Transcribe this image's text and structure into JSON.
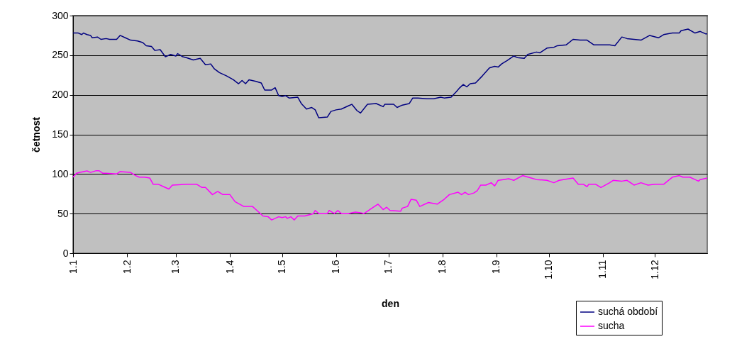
{
  "chart_data": {
    "type": "line",
    "xlabel": "den",
    "ylabel": "četnost",
    "ylim": [
      0,
      300
    ],
    "yticks": [
      0,
      50,
      100,
      150,
      200,
      250,
      300
    ],
    "xlim": [
      "--01-01",
      "--12-31"
    ],
    "xticks": [
      {
        "value": "--01-01",
        "label": "1.1"
      },
      {
        "value": "--02-01",
        "label": "1.2"
      },
      {
        "value": "--03-01",
        "label": "1.3"
      },
      {
        "value": "--04-01",
        "label": "1.4"
      },
      {
        "value": "--05-01",
        "label": "1.5"
      },
      {
        "value": "--06-01",
        "label": "1.6"
      },
      {
        "value": "--07-01",
        "label": "1.7"
      },
      {
        "value": "--08-01",
        "label": "1.8"
      },
      {
        "value": "--09-01",
        "label": "1.9"
      },
      {
        "value": "--10-01",
        "label": "1.10"
      },
      {
        "value": "--11-01",
        "label": "1.11"
      },
      {
        "value": "--12-01",
        "label": "1.12"
      }
    ],
    "grid": "y",
    "legend": "bottom right",
    "marker": "none",
    "line_style": "solid",
    "series": [
      {
        "name": "suchá období",
        "color": "#000080",
        "x": [
          "--01-01",
          "--01-04",
          "--01-06",
          "--01-07",
          "--01-09",
          "--01-11",
          "--01-12",
          "--01-15",
          "--01-17",
          "--01-20",
          "--01-22",
          "--01-26",
          "--01-28",
          "--01-31",
          "--02-03",
          "--02-07",
          "--02-10",
          "--02-12",
          "--02-15",
          "--02-17",
          "--02-20",
          "--02-23",
          "--02-26",
          "--03-01",
          "--03-02",
          "--03-05",
          "--03-07",
          "--03-11",
          "--03-15",
          "--03-18",
          "--03-21",
          "--03-23",
          "--03-26",
          "--03-30",
          "--04-03",
          "--04-06",
          "--04-08",
          "--04-10",
          "--04-12",
          "--04-16",
          "--04-19",
          "--04-21",
          "--04-25",
          "--04-27",
          "--04-29",
          "--05-01",
          "--05-03",
          "--05-05",
          "--05-10",
          "--05-12",
          "--05-15",
          "--05-18",
          "--05-20",
          "--05-22",
          "--05-27",
          "--05-29",
          "--06-01",
          "--06-04",
          "--06-08",
          "--06-10",
          "--06-13",
          "--06-15",
          "--06-19",
          "--06-24",
          "--06-28",
          "--06-29",
          "--07-04",
          "--07-06",
          "--07-09",
          "--07-13",
          "--07-15",
          "--07-18",
          "--07-23",
          "--07-27",
          "--07-31",
          "--08-02",
          "--08-06",
          "--08-09",
          "--08-11",
          "--08-13",
          "--08-15",
          "--08-17",
          "--08-20",
          "--08-24",
          "--08-28",
          "--08-31",
          "--09-02",
          "--09-04",
          "--09-07",
          "--09-11",
          "--09-13",
          "--09-17",
          "--09-19",
          "--09-24",
          "--09-26",
          "--09-30",
          "--10-04",
          "--10-06",
          "--10-11",
          "--10-15",
          "--10-19",
          "--10-23",
          "--10-27",
          "--11-01",
          "--11-05",
          "--11-08",
          "--11-12",
          "--11-15",
          "--11-19",
          "--11-23",
          "--11-28",
          "--12-03",
          "--12-06",
          "--12-11",
          "--12-15",
          "--12-16",
          "--12-20",
          "--12-24",
          "--12-27",
          "--12-30",
          "--12-31"
        ],
        "values": [
          278,
          278,
          276,
          278,
          276,
          275,
          272,
          273,
          270,
          271,
          270,
          270,
          275,
          272,
          269,
          268,
          266,
          262,
          261,
          256,
          257,
          248,
          251,
          249,
          252,
          248,
          247,
          244,
          246,
          238,
          239,
          233,
          228,
          224,
          219,
          214,
          218,
          214,
          219,
          217,
          215,
          206,
          206,
          209,
          199,
          198,
          199,
          196,
          197,
          189,
          182,
          184,
          181,
          171,
          172,
          179,
          181,
          182,
          186,
          188,
          180,
          177,
          188,
          189,
          185,
          188,
          188,
          184,
          187,
          189,
          196,
          196,
          195,
          195,
          197,
          196,
          197,
          204,
          209,
          213,
          210,
          214,
          215,
          224,
          234,
          236,
          235,
          239,
          243,
          249,
          247,
          246,
          251,
          254,
          253,
          259,
          260,
          262,
          263,
          270,
          269,
          269,
          263,
          263,
          263,
          262,
          273,
          271,
          270,
          269,
          275,
          272,
          276,
          278,
          278,
          281,
          283,
          278,
          280,
          277,
          277
        ]
      },
      {
        "name": "sucha",
        "color": "#ff00ff",
        "x": [
          "--01-01",
          "--01-03",
          "--01-05",
          "--01-07",
          "--01-09",
          "--01-11",
          "--01-14",
          "--01-16",
          "--01-18",
          "--01-20",
          "--01-26",
          "--01-28",
          "--02-03",
          "--02-06",
          "--02-08",
          "--02-11",
          "--02-14",
          "--02-16",
          "--02-19",
          "--02-22",
          "--02-25",
          "--02-27",
          "--03-07",
          "--03-13",
          "--03-16",
          "--03-18",
          "--03-22",
          "--03-25",
          "--03-28",
          "--04-01",
          "--04-04",
          "--04-09",
          "--04-14",
          "--04-17",
          "--04-20",
          "--04-23",
          "--04-25",
          "--04-29",
          "--05-01",
          "--05-03",
          "--05-04",
          "--05-06",
          "--05-08",
          "--05-10",
          "--05-14",
          "--05-19",
          "--05-20",
          "--05-22",
          "--05-27",
          "--05-28",
          "--05-31",
          "--06-02",
          "--06-04",
          "--06-08",
          "--06-12",
          "--06-15",
          "--06-17",
          "--06-21",
          "--06-25",
          "--06-28",
          "--06-30",
          "--07-02",
          "--07-08",
          "--07-09",
          "--07-12",
          "--07-14",
          "--07-17",
          "--07-19",
          "--07-24",
          "--07-29",
          "--08-02",
          "--08-05",
          "--08-10",
          "--08-12",
          "--08-14",
          "--08-16",
          "--08-19",
          "--08-21",
          "--08-23",
          "--08-26",
          "--08-29",
          "--08-31",
          "--09-02",
          "--09-05",
          "--09-08",
          "--09-11",
          "--09-16",
          "--09-21",
          "--09-24",
          "--09-30",
          "--10-04",
          "--10-07",
          "--10-15",
          "--10-18",
          "--10-21",
          "--10-23",
          "--10-24",
          "--10-28",
          "--10-31",
          "--11-05",
          "--11-07",
          "--11-12",
          "--11-15",
          "--11-19",
          "--11-23",
          "--11-27",
          "--12-01",
          "--12-06",
          "--12-11",
          "--12-15",
          "--12-17",
          "--12-21",
          "--12-24",
          "--12-26",
          "--12-27",
          "--12-31"
        ],
        "values": [
          96,
          101,
          102,
          103,
          104,
          102,
          104,
          104,
          101,
          101,
          100,
          103,
          102,
          98,
          96,
          96,
          95,
          87,
          87,
          84,
          81,
          86,
          87,
          87,
          83,
          83,
          74,
          78,
          74,
          74,
          65,
          59,
          59,
          53,
          47,
          46,
          42,
          46,
          45,
          46,
          44,
          46,
          42,
          47,
          47,
          50,
          54,
          50,
          50,
          54,
          50,
          54,
          50,
          50,
          52,
          51,
          50,
          56,
          62,
          55,
          58,
          54,
          53,
          57,
          59,
          68,
          67,
          59,
          64,
          62,
          68,
          74,
          77,
          74,
          77,
          74,
          76,
          79,
          86,
          86,
          89,
          85,
          92,
          93,
          94,
          92,
          98,
          95,
          93,
          92,
          89,
          92,
          95,
          87,
          87,
          84,
          87,
          87,
          83,
          89,
          92,
          91,
          92,
          86,
          89,
          86,
          87,
          87,
          96,
          98,
          96,
          96,
          93,
          91,
          93,
          95
        ]
      }
    ]
  }
}
